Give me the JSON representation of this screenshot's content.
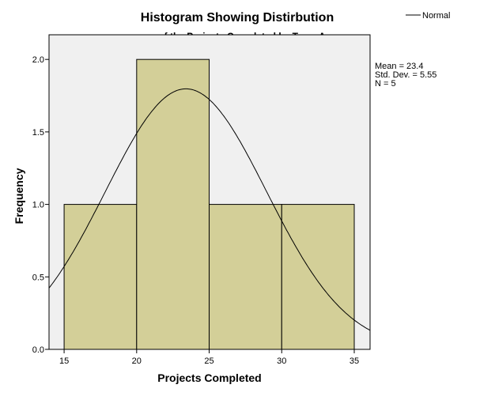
{
  "chart_data": {
    "type": "bar",
    "subtype": "histogram",
    "title": "Histogram Showing Distirbution",
    "subtitle": "of the Projects Completed by Team A",
    "xlabel": "Projects Completed",
    "ylabel": "Frequency",
    "bins": [
      {
        "start": 15,
        "end": 20,
        "count": 1
      },
      {
        "start": 20,
        "end": 25,
        "count": 2
      },
      {
        "start": 25,
        "end": 30,
        "count": 1
      },
      {
        "start": 30,
        "end": 35,
        "count": 1
      }
    ],
    "xlim": [
      13.96,
      36.09
    ],
    "ylim": [
      0,
      2.17
    ],
    "xticks": [
      "15",
      "20",
      "25",
      "30",
      "35"
    ],
    "xtick_values": [
      15,
      20,
      25,
      30,
      35
    ],
    "yticks": [
      "0.0",
      "0.5",
      "1.0",
      "1.5",
      "2.0"
    ],
    "ytick_values": [
      0,
      0.5,
      1.0,
      1.5,
      2.0
    ],
    "legend": {
      "placement": "top-right",
      "entries": [
        "Normal"
      ]
    },
    "normal_curve": {
      "mean": 23.4,
      "sd": 5.55,
      "n": 5,
      "bin_width": 5
    },
    "stats": [
      "Mean = 23.4",
      "Std. Dev. = 5.55",
      "N = 5"
    ],
    "colors": {
      "bar": "#d3cf98",
      "plot_bg": "#f0f0f0",
      "line": "#000000"
    },
    "grid": false
  }
}
